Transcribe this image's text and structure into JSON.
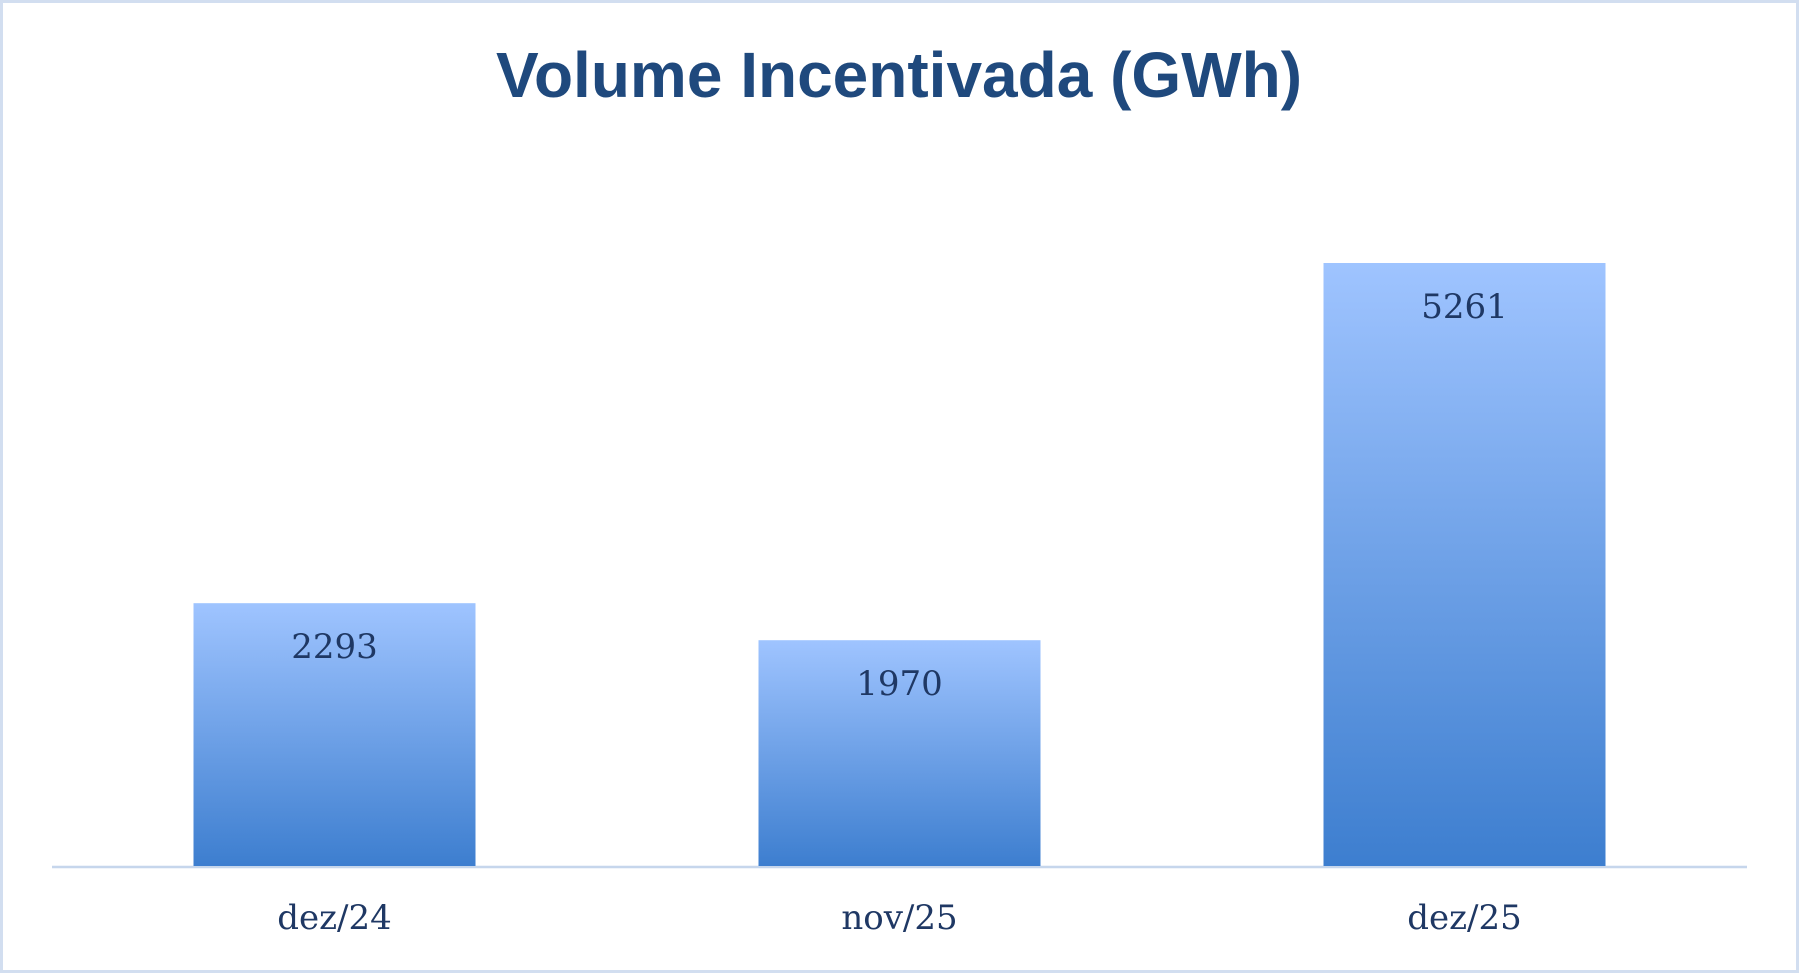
{
  "chart_data": {
    "type": "bar",
    "title": "Volume Incentivada (GWh)",
    "categories": [
      "dez/24",
      "nov/25",
      "dez/25"
    ],
    "values": [
      2293,
      1970,
      5261
    ],
    "color": "#3d7ecf"
  }
}
